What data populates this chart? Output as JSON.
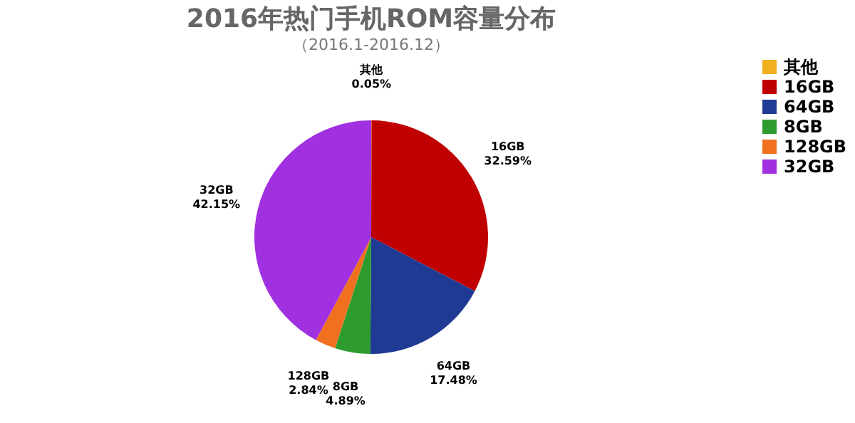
{
  "chart_data": {
    "type": "pie",
    "title": "2016年热门手机ROM容量分布",
    "subtitle": "（2016.1-2016.12）",
    "categories": [
      "其他",
      "16GB",
      "64GB",
      "8GB",
      "128GB",
      "32GB"
    ],
    "values": [
      0.05,
      32.59,
      17.48,
      4.89,
      2.84,
      42.15
    ],
    "colors": [
      "#f0b020",
      "#c00000",
      "#1f3a93",
      "#2e9b2e",
      "#f07020",
      "#a030e0"
    ],
    "value_labels": [
      "0.05%",
      "32.59%",
      "17.48%",
      "4.89%",
      "2.84%",
      "42.15%"
    ],
    "legend": "right"
  }
}
